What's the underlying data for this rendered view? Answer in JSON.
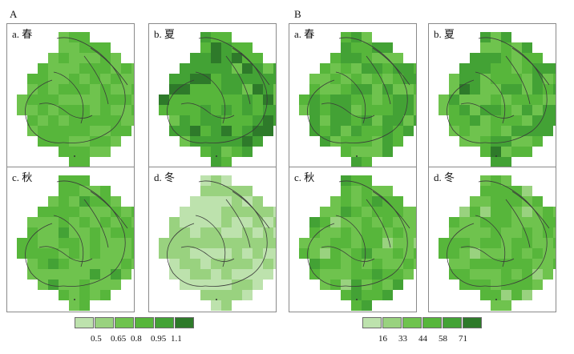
{
  "groups": [
    {
      "label": "A",
      "panels": [
        {
          "label": "a. 春"
        },
        {
          "label": "b. 夏"
        },
        {
          "label": "c. 秋"
        },
        {
          "label": "d. 冬"
        }
      ],
      "legend": {
        "ticks": [
          "0.5",
          "0.65",
          "0.8",
          "0.95",
          "1.1"
        ],
        "colors": [
          "#bde2ad",
          "#99d27f",
          "#6fc34e",
          "#57b63b",
          "#43a235",
          "#2e7a2a"
        ]
      }
    },
    {
      "label": "B",
      "panels": [
        {
          "label": "a. 春"
        },
        {
          "label": "b. 夏"
        },
        {
          "label": "c. 秋"
        },
        {
          "label": "d. 冬"
        }
      ],
      "legend": {
        "ticks": [
          "16",
          "33",
          "44",
          "58",
          "71"
        ],
        "colors": [
          "#bde2ad",
          "#99d27f",
          "#6fc34e",
          "#57b63b",
          "#43a235",
          "#2e7a2a"
        ]
      }
    }
  ],
  "colors": {
    "panel_border": "#8a8a8a",
    "boundary_line": "#3a3a3a"
  }
}
